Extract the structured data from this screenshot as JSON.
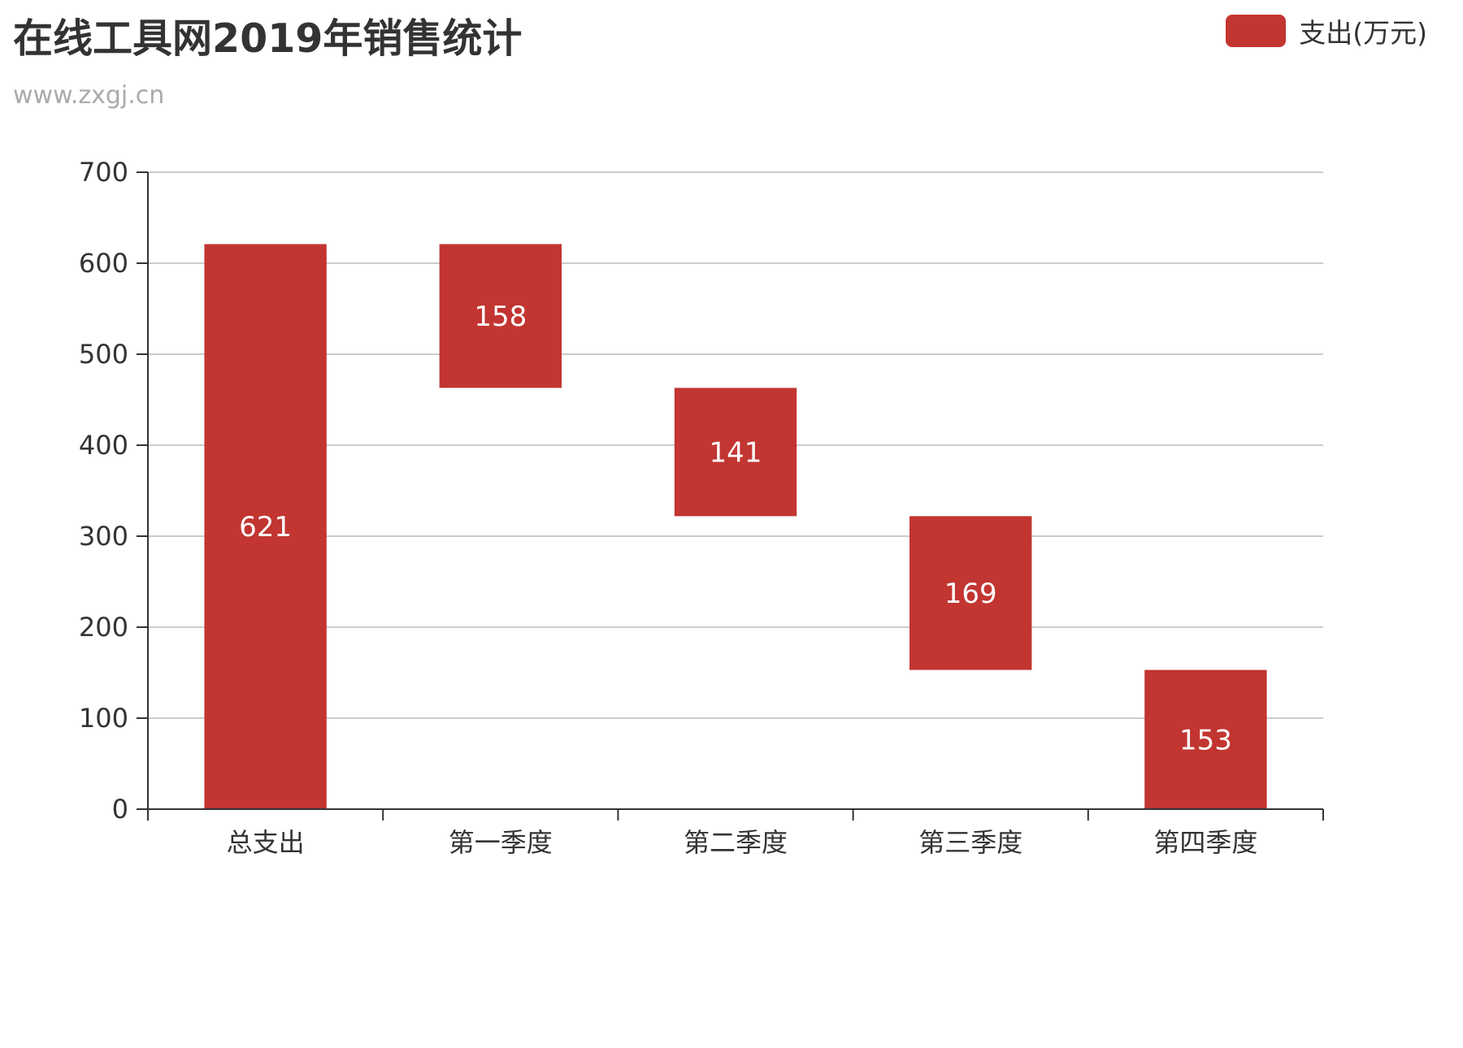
{
  "header": {
    "title": "在线工具网2019年销售统计",
    "subtitle": "www.zxgj.cn"
  },
  "legend": {
    "label": "支出(万元)",
    "color": "#c23531"
  },
  "chart_data": {
    "type": "bar",
    "variant": "waterfall",
    "title": "在线工具网2019年销售统计",
    "subtitle": "www.zxgj.cn",
    "categories": [
      "总支出",
      "第一季度",
      "第二季度",
      "第三季度",
      "第四季度"
    ],
    "series": [
      {
        "name": "支出(万元)",
        "values": [
          621,
          158,
          141,
          169,
          153
        ],
        "base": [
          0,
          463,
          322,
          153,
          0
        ],
        "color": "#c23531"
      }
    ],
    "ylim": [
      0,
      700
    ],
    "yticks": [
      0,
      100,
      200,
      300,
      400,
      500,
      600,
      700
    ],
    "grid": true,
    "legend_position": "top-right"
  }
}
